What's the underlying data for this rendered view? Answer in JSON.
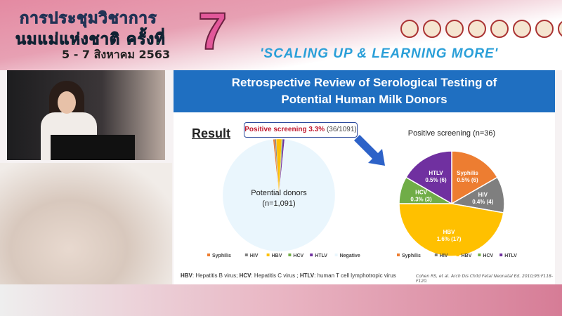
{
  "header": {
    "thai_line1": "การประชุมวิชาการ",
    "thai_line2": "นมแม่แห่งชาติ ครั้งที่",
    "date": "5 - 7 สิงหาคม 2563",
    "number": "7",
    "slogan": "'SCALING UP & LEARNING MORE'"
  },
  "slide": {
    "title_line1": "Retrospective Review of Serological Testing of",
    "title_line2": "Potential Human Milk Donors",
    "result_label": "Result",
    "callout_bold": "Positive screening 3.3%",
    "callout_rest": "(36/1091)",
    "footnote": [
      {
        "b": "HBV",
        "t": ": Hepatitis B virus; "
      },
      {
        "b": "HCV",
        "t": ": Hepatitis C virus ; "
      },
      {
        "b": "HTLV",
        "t": ": human T cell lymphotropic virus"
      }
    ],
    "citation": "Cohen RS, et al. Arch Dis Child Fetal Neonatal Ed. 2010;95:F118-F120."
  },
  "colors": {
    "Syphilis": "#ed7d31",
    "HIV": "#7f7f7f",
    "HBV": "#ffc000",
    "HCV": "#70ad47",
    "HTLV": "#7030a0",
    "Negative": "#eaf6fd",
    "title_bar": "#1f6fc1"
  },
  "chart_data": [
    {
      "type": "pie",
      "title": "",
      "center_label_line1": "Potential donors",
      "center_label_line2": "(n=1,091)",
      "categories": [
        "Syphilis",
        "HIV",
        "HBV",
        "HCV",
        "HTLV",
        "Negative"
      ],
      "values": [
        6,
        4,
        17,
        3,
        6,
        1055
      ],
      "legend": "bottom"
    },
    {
      "type": "pie",
      "title": "Positive screening (n=36)",
      "categories": [
        "Syphilis",
        "HIV",
        "HBV",
        "HCV",
        "HTLV"
      ],
      "values": [
        6,
        4,
        17,
        3,
        6
      ],
      "labels": [
        "0.5% (6)",
        "0.4% (4)",
        "1.6% (17)",
        "0.3% (3)",
        "0.5% (6)"
      ],
      "legend": "bottom"
    }
  ]
}
